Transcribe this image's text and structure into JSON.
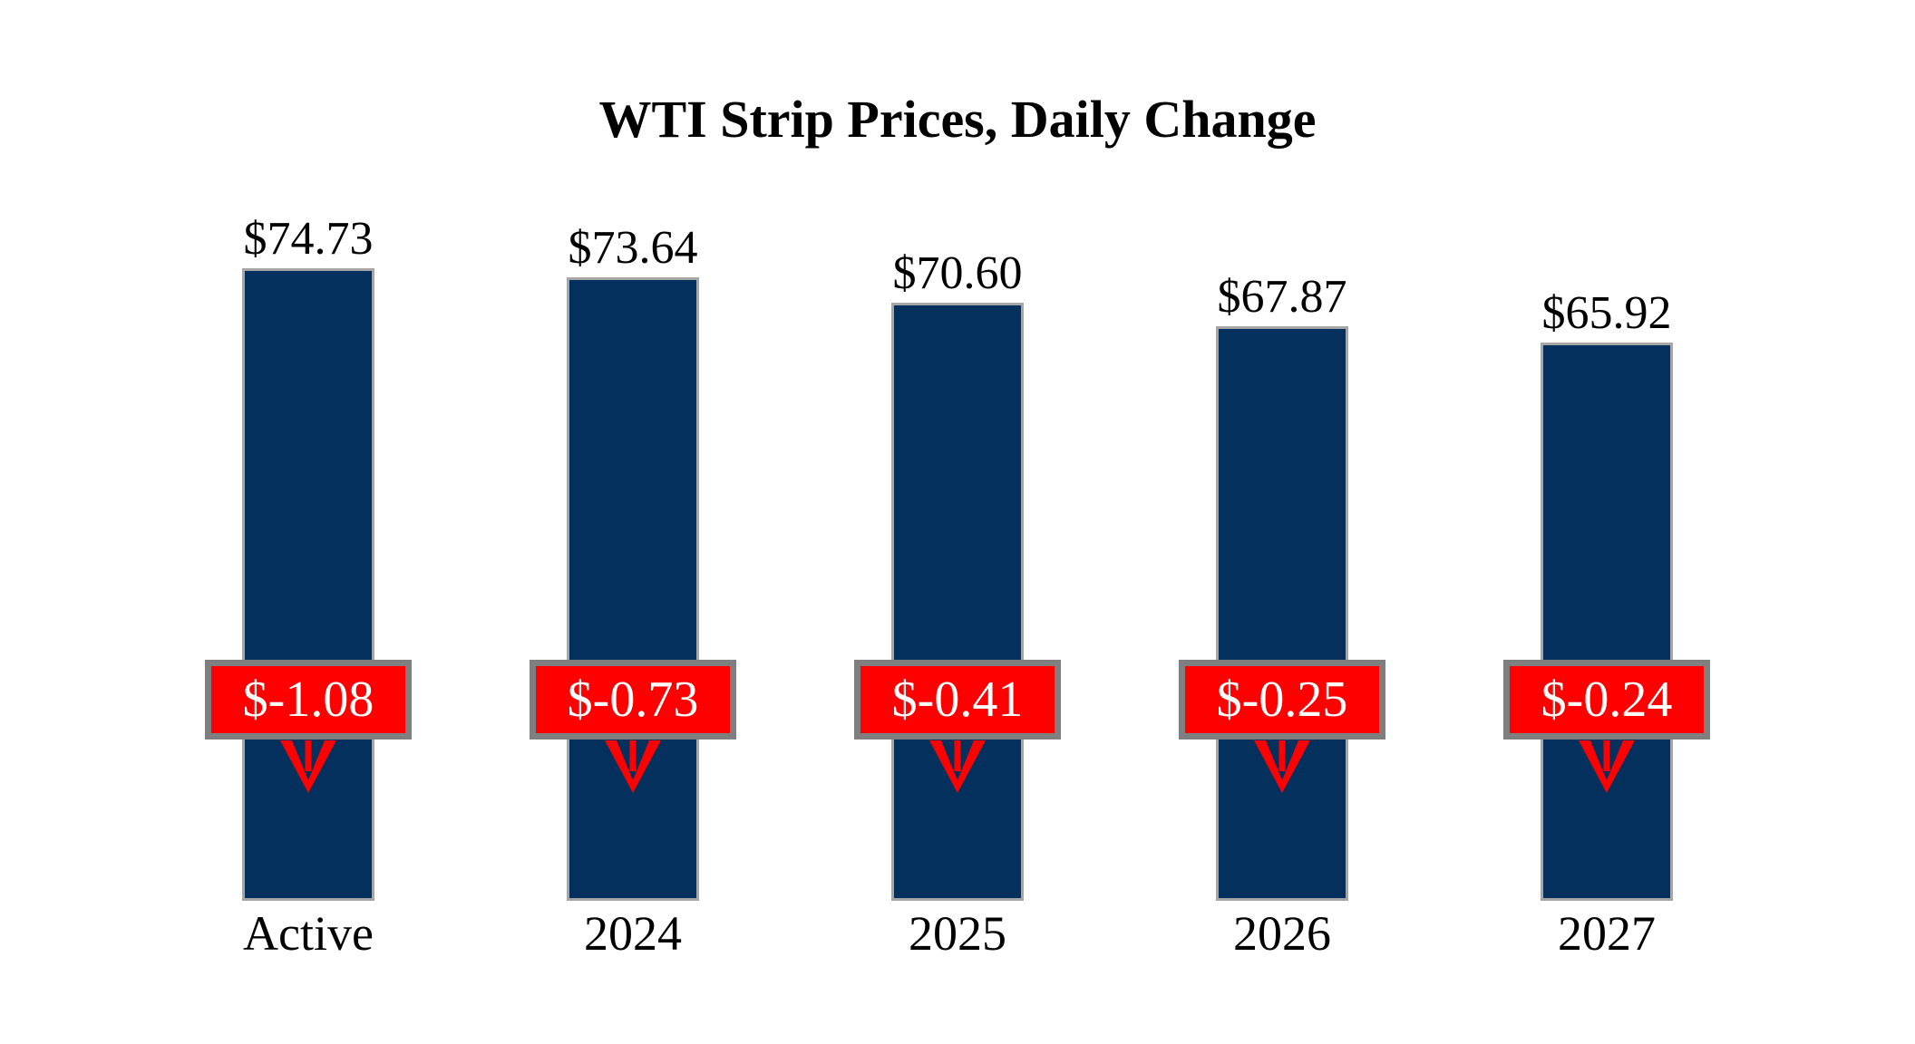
{
  "title": "WTI Strip Prices, Daily Change",
  "chart_data": {
    "type": "bar",
    "title": "WTI Strip Prices, Daily Change",
    "categories": [
      "Active",
      "2024",
      "2025",
      "2026",
      "2027"
    ],
    "series": [
      {
        "name": "strip-price",
        "values": [
          74.73,
          73.64,
          70.6,
          67.87,
          65.92
        ],
        "labels": [
          "$74.73",
          "$73.64",
          "$70.60",
          "$67.87",
          "$65.92"
        ]
      },
      {
        "name": "daily-change",
        "values": [
          -1.08,
          -0.73,
          -0.41,
          -0.25,
          -0.24
        ],
        "labels": [
          "$-1.08",
          "$-0.73",
          "$-0.41",
          "$-0.25",
          "$-0.24"
        ]
      }
    ],
    "baseline": 0,
    "axes_visible": false,
    "grid": false,
    "legend": "none"
  },
  "colors": {
    "background": "#FFFFFF",
    "bar_fill": "#04305E",
    "bar_border": "#A6A6A6",
    "change_badge_fill": "#FF0000",
    "change_badge_border": "#7F7F7F",
    "change_text": "#FFFFFF",
    "arrow": "#FF0000",
    "label_text": "#000000"
  }
}
